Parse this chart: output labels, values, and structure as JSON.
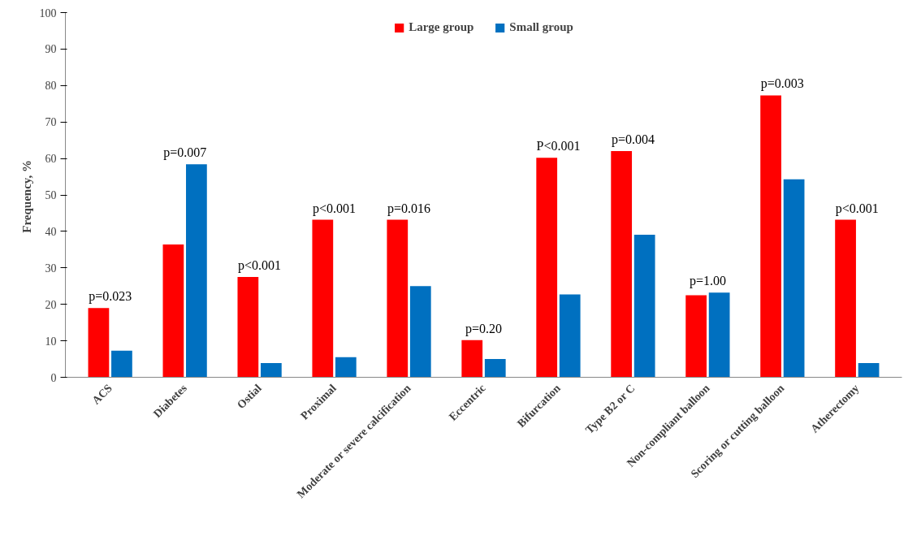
{
  "chart_data": {
    "type": "bar",
    "ylabel": "Frequency,  %",
    "categories": [
      "ACS",
      "Diabetes",
      "Ostial",
      "Proximal",
      "Moderate or severe calcification",
      "Eccentric",
      "Bifurcation",
      "Type B2 or C",
      "Non-compliant balloon",
      "Scoring or cutting balloon",
      "Atherectomy"
    ],
    "series": [
      {
        "name": "Large group",
        "color": "#ff0000",
        "values": [
          19,
          36.4,
          27.5,
          43.2,
          43.2,
          10.2,
          60.2,
          62,
          22.5,
          77.3,
          43.2
        ]
      },
      {
        "name": "Small group",
        "color": "#0070c0",
        "values": [
          7.3,
          58.4,
          3.9,
          5.5,
          25,
          5,
          22.7,
          39.1,
          23.2,
          54.3,
          3.9
        ]
      }
    ],
    "ylim": [
      0,
      100
    ],
    "yticks": [
      0,
      10,
      20,
      30,
      40,
      50,
      60,
      70,
      80,
      90,
      100
    ],
    "grid": false,
    "legend": "top",
    "annotations": [
      "p=0.023",
      "p=0.007",
      "p<0.001",
      "p<0.001",
      "p=0.016",
      "p=0.20",
      "P<0.001",
      "p=0.004",
      "p=1.00",
      "p=0.003",
      "p<0.001"
    ]
  }
}
